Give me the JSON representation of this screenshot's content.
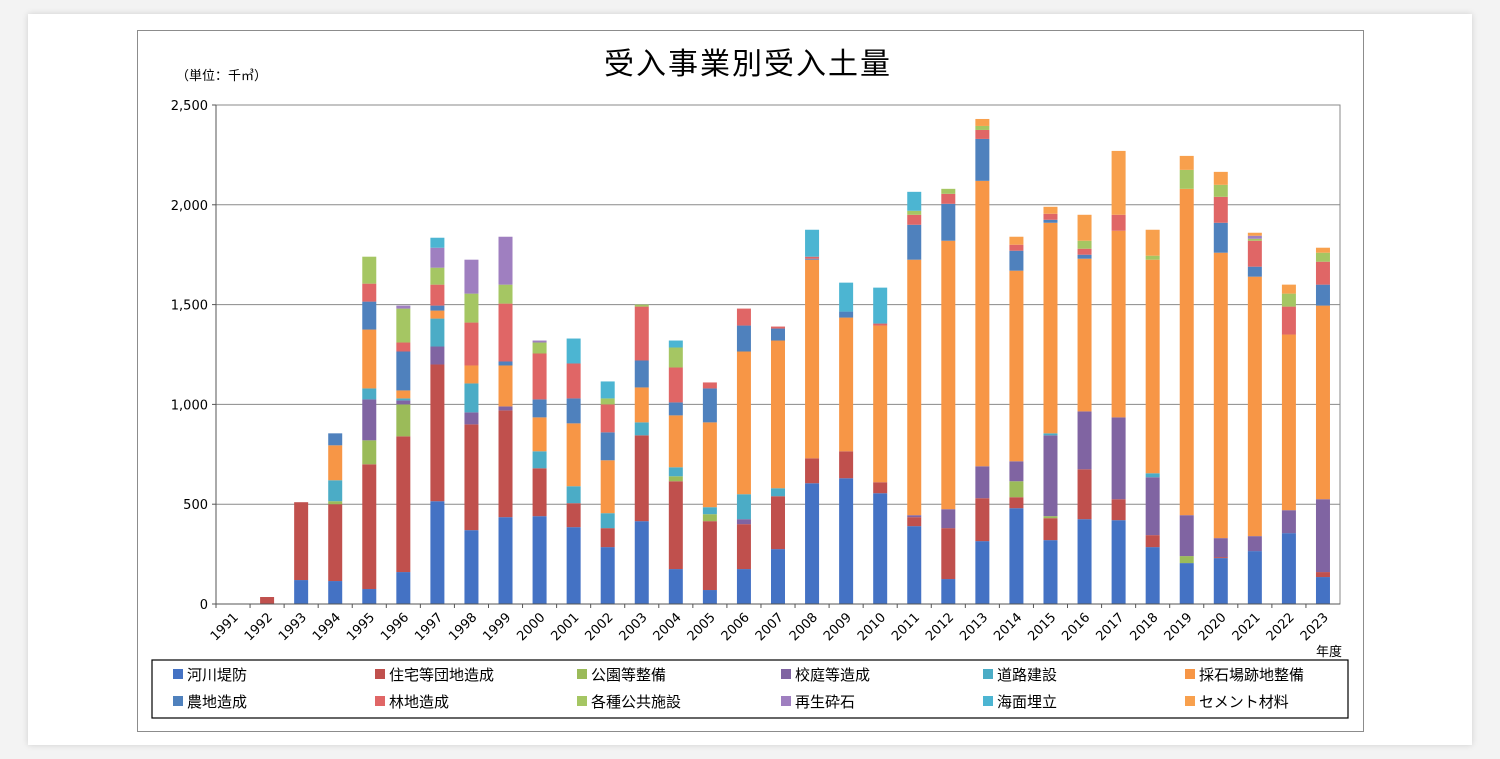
{
  "chart_data": {
    "type": "bar",
    "stacked": true,
    "title": "受入事業別受入土量",
    "unit_label": "（単位：千㎥）",
    "xlabel": "年度",
    "ylabel": "",
    "ylim": [
      0,
      2500
    ],
    "yticks": [
      0,
      500,
      1000,
      1500,
      2000,
      2500
    ],
    "ytick_labels": [
      "0",
      "500",
      "1,000",
      "1,500",
      "2,000",
      "2,500"
    ],
    "grid": true,
    "legend_position": "bottom",
    "categories": [
      "1991",
      "1992",
      "1993",
      "1994",
      "1995",
      "1996",
      "1997",
      "1998",
      "1999",
      "2000",
      "2001",
      "2002",
      "2003",
      "2004",
      "2005",
      "2006",
      "2007",
      "2008",
      "2009",
      "2010",
      "2011",
      "2012",
      "2013",
      "2014",
      "2015",
      "2016",
      "2017",
      "2018",
      "2019",
      "2020",
      "2021",
      "2022",
      "2023"
    ],
    "series": [
      {
        "name": "河川堤防",
        "color": "#4472C4",
        "values": [
          0,
          0,
          120,
          115,
          75,
          160,
          515,
          370,
          435,
          440,
          385,
          285,
          415,
          175,
          70,
          175,
          275,
          605,
          630,
          555,
          390,
          125,
          315,
          480,
          320,
          425,
          420,
          285,
          205,
          230,
          265,
          355,
          135
        ]
      },
      {
        "name": "住宅等団地造成",
        "color": "#C0504D",
        "values": [
          0,
          35,
          390,
          385,
          625,
          680,
          685,
          530,
          535,
          240,
          120,
          95,
          430,
          440,
          345,
          225,
          265,
          125,
          135,
          55,
          45,
          255,
          215,
          55,
          110,
          250,
          105,
          60,
          0,
          5,
          0,
          0,
          25
        ]
      },
      {
        "name": "公園等整備",
        "color": "#9BBB59",
        "values": [
          0,
          0,
          0,
          15,
          120,
          160,
          0,
          0,
          0,
          0,
          0,
          0,
          0,
          25,
          35,
          0,
          0,
          0,
          0,
          0,
          0,
          0,
          0,
          80,
          10,
          0,
          0,
          0,
          35,
          0,
          0,
          0,
          0
        ]
      },
      {
        "name": "校庭等造成",
        "color": "#8064A2",
        "values": [
          0,
          0,
          0,
          0,
          205,
          20,
          90,
          60,
          20,
          0,
          0,
          0,
          0,
          0,
          0,
          25,
          0,
          0,
          0,
          0,
          10,
          95,
          160,
          100,
          405,
          290,
          410,
          290,
          205,
          95,
          75,
          115,
          365
        ]
      },
      {
        "name": "道路建設",
        "color": "#4BACC6",
        "values": [
          0,
          0,
          0,
          105,
          55,
          10,
          140,
          145,
          0,
          85,
          85,
          75,
          65,
          45,
          35,
          125,
          40,
          0,
          0,
          0,
          0,
          0,
          0,
          0,
          10,
          0,
          0,
          20,
          0,
          0,
          0,
          0,
          0
        ]
      },
      {
        "name": "採石場跡地整備",
        "color": "#F79646",
        "values": [
          0,
          0,
          0,
          175,
          295,
          40,
          40,
          90,
          205,
          170,
          315,
          265,
          175,
          260,
          425,
          715,
          740,
          995,
          670,
          785,
          1280,
          1345,
          1430,
          955,
          1055,
          765,
          935,
          1070,
          1635,
          1430,
          1300,
          880,
          970
        ]
      },
      {
        "name": "農地造成",
        "color": "#4F81BD",
        "values": [
          0,
          0,
          0,
          60,
          140,
          195,
          25,
          0,
          20,
          90,
          125,
          140,
          135,
          65,
          170,
          130,
          60,
          5,
          30,
          0,
          175,
          185,
          210,
          100,
          15,
          20,
          0,
          0,
          0,
          150,
          50,
          0,
          105
        ]
      },
      {
        "name": "林地造成",
        "color": "#E06666",
        "values": [
          0,
          0,
          0,
          0,
          90,
          45,
          105,
          215,
          290,
          230,
          175,
          140,
          270,
          175,
          30,
          85,
          10,
          10,
          0,
          10,
          50,
          50,
          45,
          30,
          30,
          30,
          80,
          0,
          0,
          130,
          130,
          140,
          115
        ]
      },
      {
        "name": "各種公共施設",
        "color": "#A5C663",
        "values": [
          0,
          0,
          0,
          0,
          135,
          170,
          85,
          145,
          95,
          55,
          0,
          30,
          10,
          100,
          0,
          0,
          0,
          0,
          0,
          0,
          20,
          25,
          20,
          0,
          0,
          40,
          0,
          20,
          95,
          60,
          10,
          65,
          45
        ]
      },
      {
        "name": "再生砕石",
        "color": "#9F7FC0",
        "values": [
          0,
          0,
          0,
          0,
          0,
          15,
          100,
          170,
          240,
          10,
          0,
          0,
          0,
          0,
          0,
          0,
          0,
          0,
          0,
          0,
          0,
          0,
          0,
          0,
          0,
          0,
          0,
          0,
          0,
          0,
          15,
          0,
          0
        ]
      },
      {
        "name": "海面埋立",
        "color": "#4CB5D2",
        "values": [
          0,
          0,
          0,
          0,
          0,
          0,
          50,
          0,
          0,
          0,
          125,
          85,
          0,
          35,
          0,
          0,
          0,
          135,
          145,
          180,
          95,
          0,
          0,
          0,
          0,
          0,
          0,
          0,
          0,
          0,
          0,
          0,
          0
        ]
      },
      {
        "name": "セメント材料",
        "color": "#F8A04D",
        "values": [
          0,
          0,
          0,
          0,
          0,
          0,
          0,
          0,
          0,
          0,
          0,
          0,
          0,
          0,
          0,
          0,
          0,
          0,
          0,
          0,
          0,
          0,
          35,
          40,
          35,
          130,
          320,
          130,
          70,
          65,
          15,
          45,
          25
        ]
      }
    ]
  }
}
